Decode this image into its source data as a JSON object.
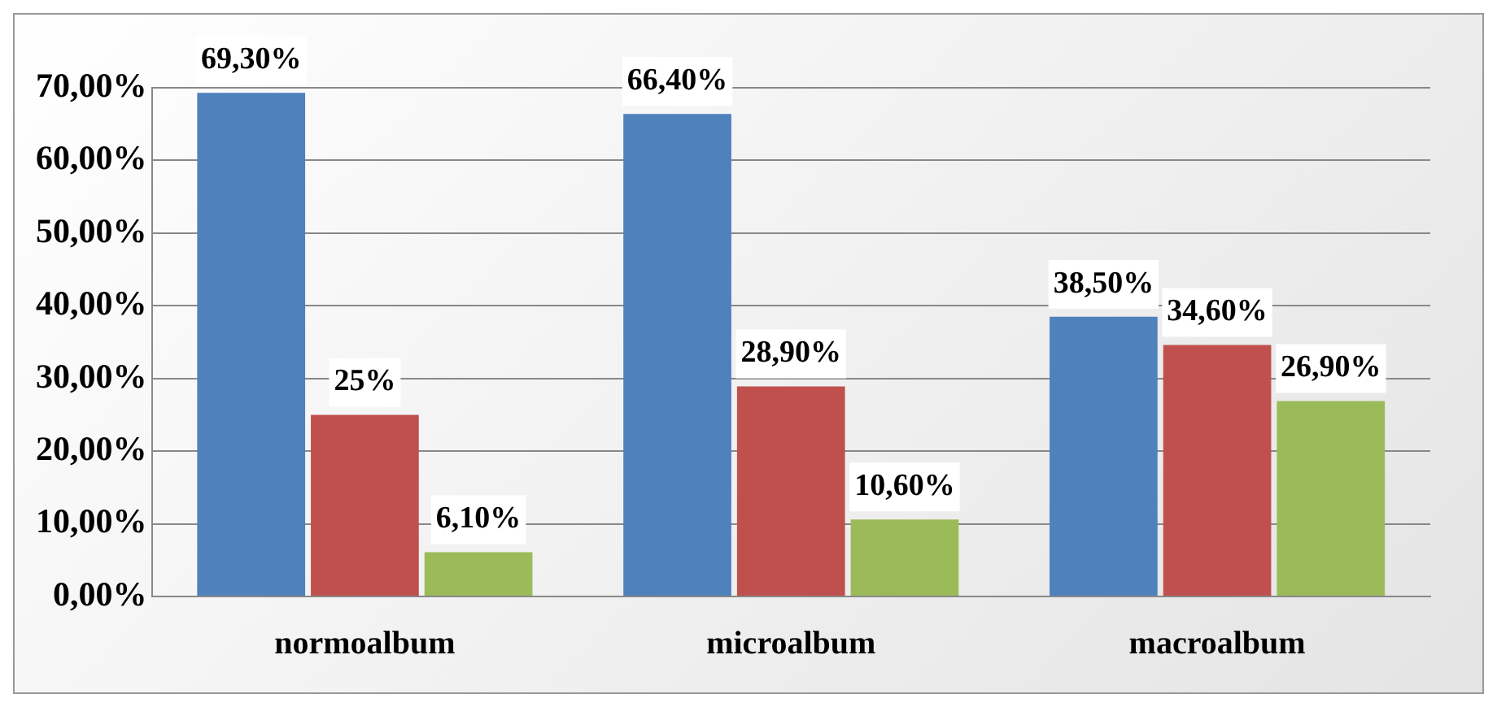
{
  "chart_data": {
    "type": "bar",
    "categories": [
      "normoalbum",
      "microalbum",
      "macroalbum"
    ],
    "series": [
      {
        "color": "#4f81bd",
        "values": [
          69.3,
          66.4,
          38.5
        ],
        "value_labels": [
          "69,30%",
          "66,40%",
          "38,50%"
        ]
      },
      {
        "color": "#c0504d",
        "values": [
          25,
          28.9,
          34.6
        ],
        "value_labels": [
          "25%",
          "28,90%",
          "34,60%"
        ]
      },
      {
        "color": "#9bbb59",
        "values": [
          6.1,
          10.6,
          26.9
        ],
        "value_labels": [
          "6,10%",
          "10,60%",
          "26,90%"
        ]
      }
    ],
    "ylim": [
      0,
      70
    ],
    "yticks": [
      {
        "value": 0,
        "label": "0,00%"
      },
      {
        "value": 10,
        "label": "10,00%"
      },
      {
        "value": 20,
        "label": "20,00%"
      },
      {
        "value": 30,
        "label": "30,00%"
      },
      {
        "value": 40,
        "label": "40,00%"
      },
      {
        "value": 50,
        "label": "50,00%"
      },
      {
        "value": 60,
        "label": "60,00%"
      },
      {
        "value": 70,
        "label": "70,00%"
      }
    ],
    "grid": "y",
    "legend": false
  }
}
